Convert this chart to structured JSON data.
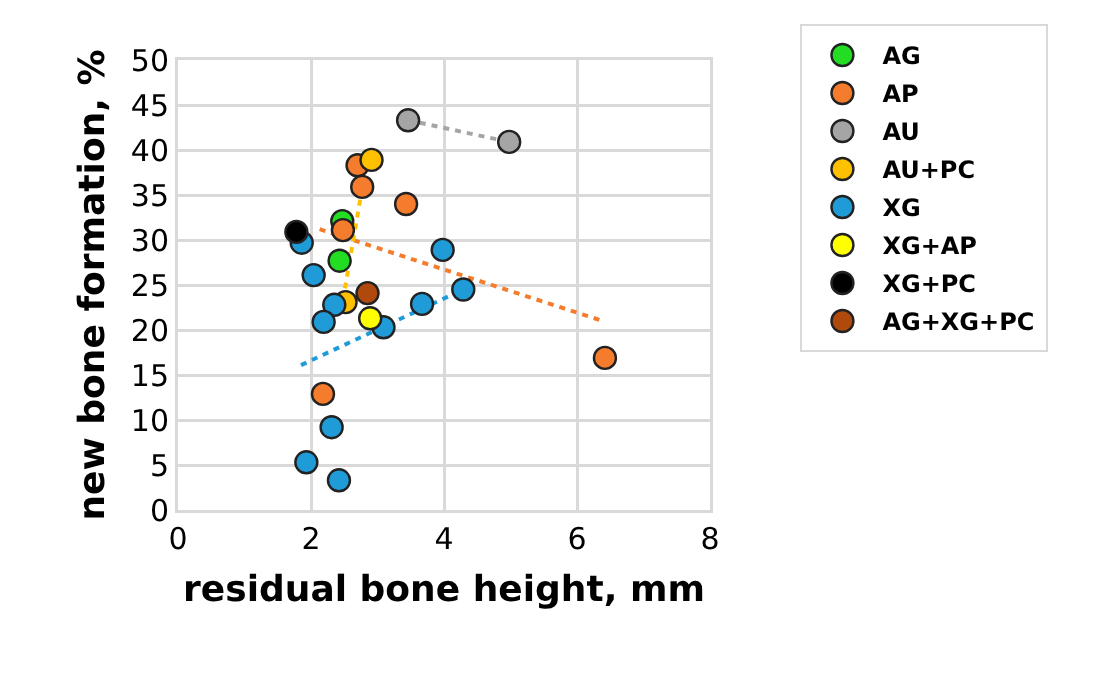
{
  "chart_data": {
    "type": "scatter",
    "xlabel": "residual bone height, mm",
    "ylabel": "new bone formation, %",
    "xlim": [
      0,
      8
    ],
    "xticks": [
      0,
      2,
      4,
      6,
      8
    ],
    "ylim": [
      0,
      50
    ],
    "yticks": [
      0,
      5,
      10,
      15,
      20,
      25,
      30,
      35,
      40,
      45,
      50
    ],
    "grid": true,
    "legend": "right",
    "marker": "circle",
    "series": [
      {
        "name": "AG",
        "color": "#22dd22",
        "x": [
          2.47,
          2.43
        ],
        "values": [
          32.1,
          27.7
        ]
      },
      {
        "name": "AP",
        "color": "#f47c2c",
        "x": [
          2.7,
          2.77,
          3.43,
          2.48,
          2.18,
          6.42
        ],
        "values": [
          38.3,
          35.9,
          34.0,
          31.1,
          12.9,
          16.9
        ]
      },
      {
        "name": "AU",
        "color": "#a5a5a5",
        "x": [
          3.46,
          4.98
        ],
        "values": [
          43.3,
          40.9
        ]
      },
      {
        "name": "AU+PC",
        "color": "#ffc000",
        "x": [
          2.91,
          2.52
        ],
        "values": [
          38.9,
          23.1
        ]
      },
      {
        "name": "XG",
        "color": "#1f9bd7",
        "x": [
          1.86,
          2.04,
          3.98,
          4.29,
          3.67,
          2.35,
          2.19,
          3.09,
          2.31,
          1.93,
          2.42
        ],
        "values": [
          29.7,
          26.1,
          28.9,
          24.5,
          22.9,
          22.8,
          20.9,
          20.3,
          9.2,
          5.3,
          3.3
        ]
      },
      {
        "name": "XG+AP",
        "color": "#ffff00",
        "x": [
          2.89
        ],
        "values": [
          21.3
        ]
      },
      {
        "name": "XG+PC",
        "color": "#000000",
        "x": [
          1.78
        ],
        "values": [
          30.9
        ]
      },
      {
        "name": "AG+XG+PC",
        "color": "#b04a0c",
        "x": [
          2.85
        ],
        "values": [
          24.1
        ]
      },
      {
        "type": "line",
        "marker": "none",
        "line_style": "dotted",
        "color": "#f47c2c",
        "x": [
          2.13,
          6.39
        ],
        "values": [
          31.2,
          21.0
        ]
      },
      {
        "type": "line",
        "marker": "none",
        "line_style": "dotted",
        "color": "#a5a5a5",
        "x": [
          3.46,
          4.98
        ],
        "values": [
          43.3,
          40.9
        ]
      },
      {
        "type": "line",
        "marker": "none",
        "line_style": "dotted",
        "color": "#ffc000",
        "x": [
          2.8,
          2.48
        ],
        "values": [
          37.1,
          23.3
        ]
      },
      {
        "type": "line",
        "marker": "none",
        "line_style": "dotted",
        "color": "#1f9bd7",
        "x": [
          1.85,
          4.29
        ],
        "values": [
          16.1,
          24.5
        ]
      }
    ]
  }
}
